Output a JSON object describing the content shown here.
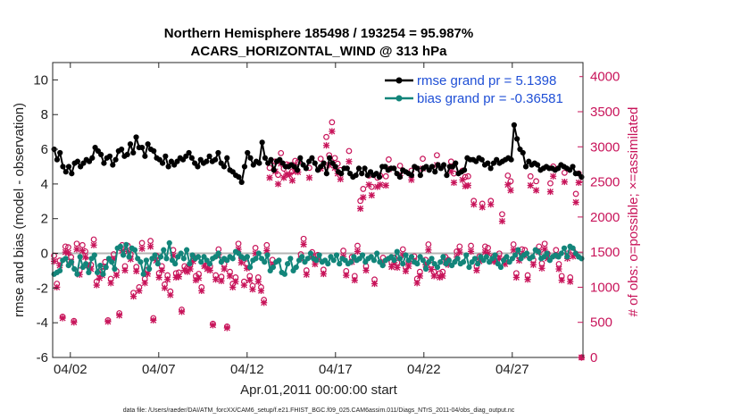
{
  "chart_data": {
    "type": "line",
    "title": "Northern Hemisphere 185498 / 193254 = 95.987%",
    "subtitle": "ACARS_HORIZONTAL_WIND @ 313 hPa",
    "xlabel": "Apr.01,2011 00:00:00 start",
    "ylabel": "rmse and bias (model - observation)",
    "y2label": "# of obs: o=possible; ×=assimilated",
    "footer": "data file: /Users/raeder/DAI/ATM_forcXX/CAM6_setup/f.e21.FHIST_BGC.f09_025.CAM6assim.011/Diags_NTrS_2011-04/obs_diag_output.nc",
    "xlim": [
      0.5,
      30.5
    ],
    "ylim": [
      -6,
      11
    ],
    "y2lim": [
      0,
      4200
    ],
    "x_ticks": [
      1.5,
      6.5,
      11.5,
      16.5,
      21.5,
      26.5
    ],
    "x_tick_labels": [
      "04/02",
      "04/07",
      "04/12",
      "04/17",
      "04/22",
      "04/27"
    ],
    "y_ticks": [
      -6,
      -4,
      -2,
      0,
      2,
      4,
      6,
      8,
      10
    ],
    "y_tick_labels": [
      "-6",
      "-4",
      "-2",
      "0",
      "2",
      "4",
      "6",
      "8",
      "10"
    ],
    "y2_ticks": [
      0,
      500,
      1000,
      1500,
      2000,
      2500,
      3000,
      3500,
      4000
    ],
    "y2_tick_labels": [
      "0",
      "500",
      "1000",
      "1500",
      "2000",
      "2500",
      "3000",
      "3500",
      "4000"
    ],
    "colors": {
      "rmse": "#000000",
      "bias": "#12857a",
      "obs": "#c8145a",
      "zero_line": "#b4b4b4",
      "legend_text": "#1f4fd6"
    },
    "legend": [
      {
        "label": "rmse grand pr = 5.1398",
        "series": "rmse"
      },
      {
        "label": "bias grand pr = -0.36581",
        "series": "bias"
      }
    ],
    "series": [
      {
        "name": "rmse",
        "values": [
          6.0,
          5.4,
          5.8,
          5.0,
          4.7,
          5.0,
          4.6,
          5.2,
          5.3,
          5.0,
          5.2,
          5.4,
          5.3,
          5.5,
          6.1,
          5.9,
          5.7,
          5.2,
          5.5,
          5.6,
          5.1,
          5.4,
          5.9,
          6.0,
          5.6,
          5.7,
          6.3,
          5.8,
          6.7,
          6.1,
          6.1,
          5.6,
          6.3,
          6.0,
          5.9,
          5.5,
          5.4,
          5.2,
          5.6,
          5.0,
          5.3,
          5.1,
          5.3,
          5.5,
          5.4,
          5.6,
          5.8,
          5.5,
          5.2,
          5.0,
          5.4,
          5.2,
          5.3,
          5.6,
          5.3,
          5.4,
          5.8,
          5.2,
          5.0,
          5.5,
          4.8,
          4.7,
          4.5,
          4.4,
          4.1,
          5.0,
          5.8,
          5.5,
          5.1,
          5.3,
          5.2,
          6.4,
          5.5,
          5.2,
          5.4,
          4.8,
          5.3,
          5.4,
          5.2,
          5.0,
          5.0,
          5.1,
          5.0,
          4.8,
          5.5,
          5.1,
          4.9,
          5.3,
          5.5,
          5.2,
          4.8,
          5.0,
          5.2,
          4.6,
          5.5,
          5.2,
          5.0,
          4.7,
          4.6,
          4.9,
          4.9,
          4.6,
          4.4,
          4.5,
          4.9,
          4.6,
          4.9,
          4.5,
          4.7,
          4.5,
          4.6,
          4.4,
          5.0,
          5.0,
          4.8,
          4.9,
          4.9,
          4.6,
          4.4,
          4.8,
          4.7,
          4.6,
          4.5,
          5.0,
          4.9,
          4.5,
          4.9,
          5.0,
          4.8,
          5.0,
          4.7,
          5.1,
          4.9,
          5.1,
          4.5,
          5.0,
          5.0,
          5.2,
          4.6,
          4.7,
          4.8,
          5.5,
          5.4,
          5.4,
          5.3,
          5.5,
          5.4,
          5.1,
          5.2,
          4.9,
          5.2,
          5.4,
          5.2,
          5.3,
          5.4,
          5.5,
          5.4,
          7.4,
          6.6,
          6.0,
          5.8,
          5.0,
          5.3,
          5.1,
          5.2,
          5.1,
          4.8,
          4.9,
          5.0,
          4.9,
          4.9,
          4.8,
          4.9,
          5.1,
          5.0,
          4.9,
          4.8,
          5.0,
          4.6,
          4.6,
          4.4
        ]
      },
      {
        "name": "bias",
        "values": [
          -1.2,
          -1.1,
          -1.0,
          -0.4,
          -0.3,
          -0.7,
          -0.5,
          -0.9,
          -1.2,
          -0.2,
          -0.8,
          -0.6,
          -1.1,
          -0.3,
          -0.1,
          -1.1,
          -0.7,
          -1.2,
          -0.8,
          -0.3,
          -0.5,
          -0.9,
          0.3,
          0.4,
          -0.1,
          0.5,
          -0.2,
          0.3,
          0.2,
          -0.3,
          -0.5,
          -1.2,
          -0.4,
          -0.9,
          -0.3,
          -0.1,
          -0.6,
          -0.2,
          0.2,
          -0.3,
          0.6,
          -0.4,
          -0.6,
          -0.2,
          0.0,
          -0.3,
          0.2,
          -0.6,
          -0.1,
          -0.3,
          -0.2,
          -0.5,
          -0.2,
          -0.4,
          -0.6,
          -0.3,
          -0.2,
          0.0,
          -0.5,
          -0.3,
          -0.4,
          -0.2,
          -0.3,
          0.1,
          0.0,
          -0.2,
          -0.3,
          -0.2,
          -0.8,
          -0.4,
          -0.3,
          0.0,
          -0.3,
          -0.5,
          -0.1,
          -1.0,
          -0.8,
          -0.5,
          -0.4,
          -1.1,
          -1.2,
          -0.6,
          -0.3,
          -1.0,
          -0.8,
          -0.4,
          -0.2,
          -0.5,
          -0.3,
          0.0,
          -0.3,
          -0.4,
          -0.1,
          -0.5,
          -0.4,
          -0.6,
          -0.2,
          -0.4,
          -0.1,
          -0.6,
          -0.3,
          -0.4,
          -0.6,
          -0.5,
          -0.2,
          -0.4,
          -0.3,
          -0.1,
          -0.5,
          -0.3,
          -0.2,
          -0.4,
          0.0,
          -0.5,
          -0.7,
          -0.4,
          -0.3,
          -0.2,
          -0.4,
          0.1,
          -0.3,
          -0.6,
          -0.1,
          -0.4,
          -0.2,
          -0.5,
          -0.6,
          -0.2,
          -0.4,
          -0.9,
          -0.5,
          -0.3,
          -0.6,
          -0.8,
          -0.5,
          -0.2,
          -0.6,
          -0.4,
          -0.7,
          -0.5,
          -0.3,
          -0.6,
          -0.5,
          -0.1,
          -0.8,
          -0.5,
          -0.3,
          -0.6,
          -0.2,
          -0.4,
          -0.2,
          -0.5,
          -0.3,
          -0.1,
          -0.6,
          -0.8,
          -0.4,
          -0.2,
          -0.5,
          -0.3,
          -0.1,
          0.2,
          -0.3,
          -0.1,
          0.0,
          -0.3,
          -0.2,
          0.2,
          0.1,
          -0.3,
          -0.2,
          0.0,
          -0.4,
          -0.2,
          -0.1,
          -0.2,
          0.0,
          0.3,
          -0.2,
          0.4,
          0.3,
          0.0,
          -0.2,
          -0.3
        ]
      }
    ],
    "obs_possible": [
      1450,
      1050,
      1380,
      580,
      1580,
      1570,
      1430,
      520,
      1620,
      1240,
      1600,
      1510,
      1380,
      1320,
      1680,
      1080,
      1190,
      1230,
      1360,
      530,
      1120,
      1470,
      1230,
      630,
      1600,
      1300,
      1590,
      1470,
      920,
      1290,
      1000,
      1630,
      1120,
      1250,
      1660,
      560,
      1450,
      1200,
      1300,
      1040,
      1170,
      940,
      1530,
      1200,
      1210,
      680,
      1300,
      1280,
      1320,
      1440,
      1160,
      1190,
      1000,
      1370,
      1330,
      1300,
      480,
      1170,
      1540,
      1150,
      1330,
      440,
      1220,
      1050,
      1140,
      1620,
      1420,
      1080,
      1340,
      1160,
      1020,
      1560,
      1140,
      1000,
      820,
      1600,
      2700,
      1390,
      2790,
      2600,
      2910,
      2690,
      2750,
      2740,
      2650,
      2800,
      2780,
      1470,
      1690,
      1240,
      2700,
      1500,
      1400,
      1460,
      2830,
      1250,
      3140,
      2880,
      3350,
      2840,
      2760,
      2670,
      1520,
      1230,
      2940,
      1430,
      1160,
      1590,
      2230,
      2400,
      1300,
      2590,
      2430,
      1110,
      2560,
      2590,
      1420,
      2580,
      2820,
      1360,
      1420,
      1350,
      2730,
      1540,
      1290,
      1370,
      2660,
      1440,
      1120,
      1220,
      2830,
      1390,
      1610,
      1320,
      1220,
      2880,
      1200,
      1220,
      1430,
      1390,
      2790,
      2620,
      1510,
      1580,
      2660,
      2570,
      2580,
      1590,
      2230,
      1300,
      1440,
      2190,
      1580,
      1560,
      2230,
      1440,
      1430,
      1480,
      2040,
      1400,
      2590,
      2510,
      1610,
      1200,
      1450,
      1540,
      1530,
      1170,
      2580,
      1390,
      2510,
      1580,
      1340,
      1620,
      1480,
      2480,
      2720,
      1530,
      1330,
      1160,
      2630,
      1480,
      1140,
      1520,
      2330,
      2620,
      0
    ],
    "obs_assimilated": [
      1370,
      1000,
      1310,
      560,
      1500,
      1490,
      1360,
      500,
      1540,
      1180,
      1520,
      1430,
      1310,
      1260,
      1600,
      1030,
      1130,
      1170,
      1290,
      510,
      1060,
      1400,
      1170,
      600,
      1520,
      1240,
      1510,
      1400,
      870,
      1230,
      950,
      1550,
      1060,
      1190,
      1580,
      530,
      1380,
      1140,
      1240,
      990,
      1110,
      890,
      1450,
      1140,
      1150,
      650,
      1240,
      1220,
      1260,
      1370,
      1100,
      1130,
      950,
      1300,
      1260,
      1240,
      460,
      1110,
      1460,
      1090,
      1260,
      420,
      1160,
      1000,
      1080,
      1540,
      1350,
      1030,
      1270,
      1100,
      970,
      1480,
      1080,
      950,
      780,
      1520,
      2560,
      1320,
      2650,
      2470,
      2760,
      2560,
      2610,
      2600,
      2520,
      2660,
      2640,
      1400,
      1610,
      1180,
      2560,
      1430,
      1330,
      1390,
      2690,
      1190,
      3020,
      2740,
      3220,
      2700,
      2620,
      2540,
      1440,
      1170,
      2790,
      1360,
      1100,
      1510,
      2120,
      2280,
      1240,
      2460,
      2310,
      1050,
      2430,
      2460,
      1350,
      2450,
      2680,
      1290,
      1350,
      1280,
      2590,
      1460,
      1230,
      1300,
      2530,
      1370,
      1060,
      1160,
      2690,
      1320,
      1530,
      1250,
      1160,
      2740,
      1140,
      1160,
      1360,
      1320,
      2650,
      2490,
      1430,
      1500,
      2530,
      2440,
      2450,
      1510,
      2180,
      1240,
      1370,
      2140,
      1500,
      1480,
      2180,
      1370,
      1360,
      1410,
      1940,
      1330,
      2460,
      2380,
      1530,
      1140,
      1380,
      1460,
      1450,
      1110,
      2450,
      1320,
      2380,
      1500,
      1270,
      1540,
      1410,
      2360,
      2580,
      1450,
      1260,
      1100,
      2500,
      1410,
      1080,
      1440,
      2210,
      2490,
      0
    ]
  }
}
